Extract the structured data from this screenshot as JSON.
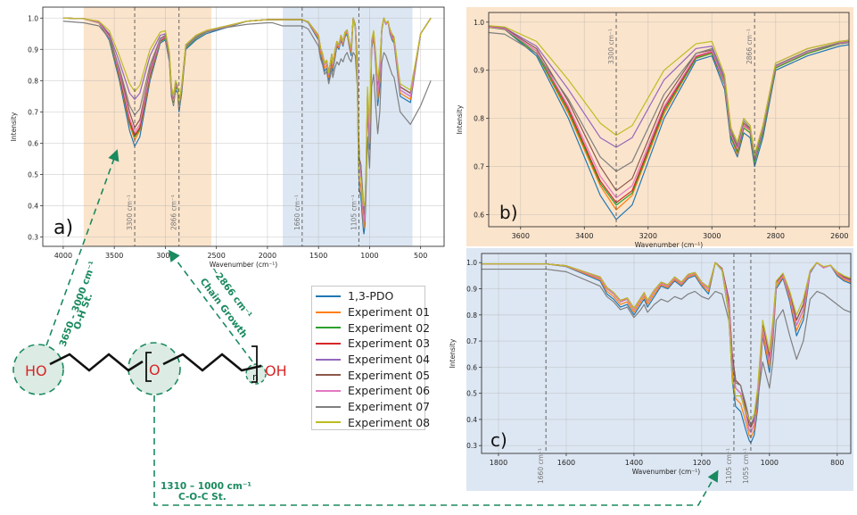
{
  "series_colors": [
    "#1f77b4",
    "#ff7f0e",
    "#2ca02c",
    "#d62728",
    "#9467bd",
    "#8c564b",
    "#e377c2",
    "#7f7f7f",
    "#bcbd22"
  ],
  "legend": [
    "1,3-PDO",
    "Experiment 01",
    "Experiment 02",
    "Experiment 03",
    "Experiment 04",
    "Experiment 05",
    "Experiment 06",
    "Experiment 07",
    "Experiment 08"
  ],
  "annotations": {
    "oh": {
      "line1": "3650 - 3000 cm⁻¹",
      "line2": "O-H St."
    },
    "ch": {
      "line1": "~2866 cm⁻¹",
      "line2": "Chain Growth"
    },
    "coc": {
      "line1": "1310 – 1000 cm⁻¹",
      "line2": "C-O-C St."
    },
    "accent": "#1a8a5f"
  },
  "molecule": {
    "left": "HO",
    "middle": "O",
    "right": "OH",
    "sub": "n"
  },
  "chart_data": [
    {
      "id": "a",
      "panel_label": "a)",
      "type": "line",
      "xlabel": "Wavenumber (cm⁻¹)",
      "ylabel": "Intensity",
      "xlim": [
        4200,
        270
      ],
      "ylim": [
        0.27,
        1.035
      ],
      "xticks": [
        4000,
        3500,
        3000,
        2500,
        2000,
        1500,
        1000,
        500
      ],
      "yticks": [
        0.3,
        0.4,
        0.5,
        0.6,
        0.7,
        0.8,
        0.9,
        1.0
      ],
      "shaded": [
        {
          "from": 3800,
          "to": 2550,
          "color": "#fbe4cc"
        },
        {
          "from": 1850,
          "to": 580,
          "color": "#dde7f3"
        }
      ],
      "vlines": [
        {
          "x": 3300,
          "label": "3300 cm⁻¹"
        },
        {
          "x": 2866,
          "label": "2866 cm⁻¹"
        },
        {
          "x": 1660,
          "label": "1660 cm⁻¹"
        },
        {
          "x": 1105,
          "label": "1105 cm⁻¹"
        }
      ],
      "grid": true
    },
    {
      "id": "b",
      "panel_label": "b)",
      "type": "line",
      "xlabel": "Wavenumber (cm⁻¹)",
      "ylabel": "Intensity",
      "xlim": [
        3700,
        2570
      ],
      "ylim": [
        0.575,
        1.02
      ],
      "xticks": [
        3600,
        3400,
        3200,
        3000,
        2800,
        2600
      ],
      "yticks": [
        0.6,
        0.7,
        0.8,
        0.9,
        1.0
      ],
      "shaded": [
        {
          "from": 3700,
          "to": 2570,
          "color": "#fbe4cc"
        }
      ],
      "vlines": [
        {
          "x": 3300,
          "label": "3300 cm⁻¹"
        },
        {
          "x": 2866,
          "label": "2866 cm⁻¹"
        }
      ],
      "grid": true
    },
    {
      "id": "c",
      "panel_label": "c)",
      "type": "line",
      "xlabel": "Wavenumber (cm⁻¹)",
      "ylabel": "Intensity",
      "xlim": [
        1850,
        760
      ],
      "ylim": [
        0.27,
        1.035
      ],
      "xticks": [
        1800,
        1600,
        1400,
        1200,
        1000,
        800
      ],
      "yticks": [
        0.3,
        0.4,
        0.5,
        0.6,
        0.7,
        0.8,
        0.9,
        1.0
      ],
      "shaded": [
        {
          "from": 1850,
          "to": 760,
          "color": "#dde7f3"
        }
      ],
      "vlines": [
        {
          "x": 1660,
          "label": "1660 cm⁻¹"
        },
        {
          "x": 1105,
          "label": "1105 cm⁻¹"
        },
        {
          "x": 1055,
          "label": "1055 cm⁻¹"
        }
      ],
      "grid": true
    }
  ],
  "spectra": {
    "x": [
      4000,
      3800,
      3650,
      3550,
      3450,
      3350,
      3300,
      3250,
      3150,
      3050,
      3000,
      2960,
      2940,
      2920,
      2900,
      2880,
      2866,
      2840,
      2800,
      2700,
      2600,
      2400,
      2200,
      2000,
      1950,
      1900,
      1850,
      1800,
      1700,
      1660,
      1600,
      1500,
      1480,
      1460,
      1440,
      1420,
      1400,
      1380,
      1370,
      1360,
      1340,
      1320,
      1300,
      1280,
      1260,
      1240,
      1220,
      1200,
      1180,
      1160,
      1140,
      1120,
      1110,
      1100,
      1085,
      1070,
      1060,
      1055,
      1045,
      1035,
      1020,
      1000,
      990,
      980,
      960,
      940,
      920,
      900,
      880,
      860,
      840,
      820,
      800,
      780,
      760,
      700,
      600,
      500,
      400
    ],
    "series": [
      {
        "name": "1,3-PDO",
        "y": [
          1.0,
          0.998,
          0.985,
          0.93,
          0.8,
          0.64,
          0.59,
          0.62,
          0.8,
          0.92,
          0.93,
          0.86,
          0.75,
          0.72,
          0.77,
          0.76,
          0.7,
          0.76,
          0.9,
          0.93,
          0.95,
          0.97,
          0.99,
          0.995,
          0.995,
          0.995,
          0.995,
          0.995,
          0.995,
          0.995,
          0.985,
          0.93,
          0.88,
          0.86,
          0.83,
          0.84,
          0.8,
          0.84,
          0.86,
          0.83,
          0.87,
          0.91,
          0.9,
          0.93,
          0.91,
          0.94,
          0.95,
          0.91,
          0.88,
          1.0,
          0.97,
          0.8,
          0.55,
          0.45,
          0.43,
          0.36,
          0.32,
          0.31,
          0.34,
          0.44,
          0.72,
          0.58,
          0.7,
          0.9,
          0.94,
          0.85,
          0.72,
          0.78,
          0.96,
          1.0,
          0.98,
          0.99,
          0.95,
          0.93,
          0.92,
          0.75,
          0.73,
          0.95,
          1.0
        ]
      },
      {
        "name": "Experiment 01",
        "y": [
          1.0,
          0.998,
          0.985,
          0.935,
          0.81,
          0.66,
          0.61,
          0.64,
          0.81,
          0.925,
          0.935,
          0.87,
          0.76,
          0.725,
          0.78,
          0.77,
          0.71,
          0.77,
          0.905,
          0.935,
          0.955,
          0.972,
          0.99,
          0.995,
          0.995,
          0.995,
          0.995,
          0.995,
          0.995,
          0.995,
          0.986,
          0.935,
          0.89,
          0.87,
          0.84,
          0.85,
          0.81,
          0.85,
          0.87,
          0.84,
          0.88,
          0.915,
          0.905,
          0.935,
          0.915,
          0.945,
          0.955,
          0.915,
          0.89,
          1.0,
          0.975,
          0.82,
          0.58,
          0.48,
          0.46,
          0.39,
          0.34,
          0.33,
          0.36,
          0.46,
          0.73,
          0.6,
          0.72,
          0.91,
          0.945,
          0.86,
          0.74,
          0.8,
          0.965,
          1.0,
          0.98,
          0.99,
          0.955,
          0.935,
          0.925,
          0.76,
          0.74,
          0.95,
          1.0
        ]
      },
      {
        "name": "Experiment 02",
        "y": [
          1.0,
          0.998,
          0.985,
          0.935,
          0.815,
          0.665,
          0.62,
          0.645,
          0.815,
          0.925,
          0.935,
          0.87,
          0.76,
          0.73,
          0.78,
          0.77,
          0.71,
          0.77,
          0.905,
          0.935,
          0.955,
          0.972,
          0.99,
          0.995,
          0.995,
          0.995,
          0.995,
          0.995,
          0.995,
          0.995,
          0.987,
          0.94,
          0.9,
          0.88,
          0.85,
          0.86,
          0.82,
          0.86,
          0.88,
          0.85,
          0.89,
          0.92,
          0.91,
          0.94,
          0.92,
          0.95,
          0.96,
          0.92,
          0.9,
          1.0,
          0.975,
          0.84,
          0.62,
          0.52,
          0.5,
          0.42,
          0.36,
          0.35,
          0.38,
          0.48,
          0.75,
          0.62,
          0.74,
          0.92,
          0.95,
          0.87,
          0.76,
          0.82,
          0.965,
          1.0,
          0.98,
          0.99,
          0.96,
          0.94,
          0.93,
          0.77,
          0.75,
          0.95,
          1.0
        ]
      },
      {
        "name": "Experiment 03",
        "y": [
          1.0,
          0.998,
          0.986,
          0.94,
          0.82,
          0.67,
          0.625,
          0.65,
          0.82,
          0.928,
          0.938,
          0.872,
          0.765,
          0.735,
          0.785,
          0.775,
          0.715,
          0.775,
          0.908,
          0.938,
          0.956,
          0.973,
          0.99,
          0.995,
          0.995,
          0.995,
          0.995,
          0.995,
          0.995,
          0.995,
          0.988,
          0.945,
          0.905,
          0.885,
          0.855,
          0.865,
          0.825,
          0.865,
          0.885,
          0.855,
          0.895,
          0.925,
          0.915,
          0.945,
          0.925,
          0.955,
          0.962,
          0.925,
          0.905,
          1.0,
          0.978,
          0.86,
          0.65,
          0.55,
          0.53,
          0.44,
          0.38,
          0.37,
          0.4,
          0.5,
          0.76,
          0.64,
          0.76,
          0.925,
          0.955,
          0.88,
          0.78,
          0.84,
          0.968,
          1.0,
          0.982,
          0.99,
          0.962,
          0.945,
          0.935,
          0.78,
          0.76,
          0.95,
          1.0
        ]
      },
      {
        "name": "Experiment 04",
        "y": [
          1.0,
          0.998,
          0.988,
          0.95,
          0.86,
          0.76,
          0.74,
          0.76,
          0.88,
          0.945,
          0.95,
          0.885,
          0.78,
          0.75,
          0.8,
          0.785,
          0.725,
          0.785,
          0.915,
          0.945,
          0.96,
          0.975,
          0.99,
          0.995,
          0.995,
          0.995,
          0.995,
          0.995,
          0.995,
          0.995,
          0.988,
          0.94,
          0.9,
          0.88,
          0.85,
          0.86,
          0.82,
          0.86,
          0.88,
          0.85,
          0.89,
          0.92,
          0.91,
          0.94,
          0.92,
          0.95,
          0.96,
          0.92,
          0.9,
          1.0,
          0.975,
          0.84,
          0.62,
          0.52,
          0.5,
          0.42,
          0.36,
          0.35,
          0.38,
          0.48,
          0.75,
          0.62,
          0.74,
          0.92,
          0.95,
          0.87,
          0.76,
          0.82,
          0.965,
          1.0,
          0.98,
          0.99,
          0.96,
          0.94,
          0.93,
          0.77,
          0.75,
          0.95,
          1.0
        ]
      },
      {
        "name": "Experiment 05",
        "y": [
          1.0,
          0.998,
          0.987,
          0.945,
          0.835,
          0.7,
          0.65,
          0.675,
          0.835,
          0.935,
          0.942,
          0.876,
          0.77,
          0.74,
          0.79,
          0.778,
          0.718,
          0.778,
          0.91,
          0.94,
          0.957,
          0.974,
          0.99,
          0.995,
          0.995,
          0.995,
          0.995,
          0.995,
          0.995,
          0.995,
          0.988,
          0.945,
          0.905,
          0.885,
          0.855,
          0.865,
          0.825,
          0.865,
          0.885,
          0.855,
          0.895,
          0.925,
          0.915,
          0.945,
          0.925,
          0.955,
          0.962,
          0.925,
          0.905,
          1.0,
          0.978,
          0.86,
          0.65,
          0.55,
          0.53,
          0.44,
          0.38,
          0.37,
          0.4,
          0.5,
          0.76,
          0.64,
          0.76,
          0.925,
          0.955,
          0.88,
          0.78,
          0.84,
          0.968,
          1.0,
          0.982,
          0.99,
          0.962,
          0.945,
          0.935,
          0.78,
          0.76,
          0.95,
          1.0
        ]
      },
      {
        "name": "Experiment 06",
        "y": [
          1.0,
          0.998,
          0.986,
          0.94,
          0.825,
          0.68,
          0.635,
          0.66,
          0.825,
          0.93,
          0.94,
          0.873,
          0.766,
          0.736,
          0.786,
          0.776,
          0.716,
          0.776,
          0.908,
          0.938,
          0.956,
          0.973,
          0.99,
          0.995,
          0.995,
          0.995,
          0.995,
          0.995,
          0.995,
          0.995,
          0.987,
          0.94,
          0.9,
          0.88,
          0.85,
          0.86,
          0.82,
          0.86,
          0.88,
          0.85,
          0.89,
          0.92,
          0.91,
          0.94,
          0.92,
          0.95,
          0.96,
          0.92,
          0.9,
          1.0,
          0.975,
          0.84,
          0.62,
          0.52,
          0.5,
          0.42,
          0.36,
          0.35,
          0.38,
          0.48,
          0.75,
          0.62,
          0.74,
          0.92,
          0.95,
          0.87,
          0.76,
          0.82,
          0.965,
          1.0,
          0.98,
          0.99,
          0.96,
          0.94,
          0.93,
          0.77,
          0.75,
          0.95,
          1.0
        ]
      },
      {
        "name": "Experiment 07",
        "y": [
          0.99,
          0.985,
          0.975,
          0.935,
          0.84,
          0.72,
          0.69,
          0.71,
          0.85,
          0.935,
          0.945,
          0.88,
          0.775,
          0.745,
          0.795,
          0.78,
          0.72,
          0.78,
          0.91,
          0.94,
          0.955,
          0.97,
          0.98,
          0.985,
          0.985,
          0.98,
          0.975,
          0.975,
          0.975,
          0.975,
          0.965,
          0.91,
          0.87,
          0.85,
          0.82,
          0.83,
          0.79,
          0.82,
          0.84,
          0.81,
          0.84,
          0.86,
          0.85,
          0.87,
          0.86,
          0.88,
          0.89,
          0.87,
          0.86,
          0.89,
          0.88,
          0.78,
          0.6,
          0.54,
          0.53,
          0.46,
          0.4,
          0.38,
          0.41,
          0.47,
          0.62,
          0.52,
          0.62,
          0.78,
          0.82,
          0.72,
          0.63,
          0.7,
          0.86,
          0.89,
          0.88,
          0.86,
          0.84,
          0.82,
          0.81,
          0.7,
          0.66,
          0.72,
          0.8
        ]
      },
      {
        "name": "Experiment 08",
        "y": [
          1.0,
          0.998,
          0.99,
          0.96,
          0.88,
          0.79,
          0.765,
          0.785,
          0.9,
          0.955,
          0.96,
          0.89,
          0.78,
          0.75,
          0.8,
          0.785,
          0.725,
          0.785,
          0.915,
          0.945,
          0.96,
          0.975,
          0.99,
          0.995,
          0.995,
          0.995,
          0.995,
          0.995,
          0.995,
          0.995,
          0.988,
          0.945,
          0.905,
          0.885,
          0.855,
          0.865,
          0.825,
          0.865,
          0.885,
          0.855,
          0.895,
          0.925,
          0.915,
          0.945,
          0.925,
          0.955,
          0.962,
          0.925,
          0.905,
          1.0,
          0.972,
          0.8,
          0.55,
          0.49,
          0.49,
          0.43,
          0.4,
          0.4,
          0.42,
          0.52,
          0.78,
          0.66,
          0.78,
          0.93,
          0.96,
          0.89,
          0.8,
          0.86,
          0.97,
          1.0,
          0.985,
          0.99,
          0.965,
          0.95,
          0.94,
          0.79,
          0.77,
          0.95,
          1.0
        ]
      }
    ]
  }
}
